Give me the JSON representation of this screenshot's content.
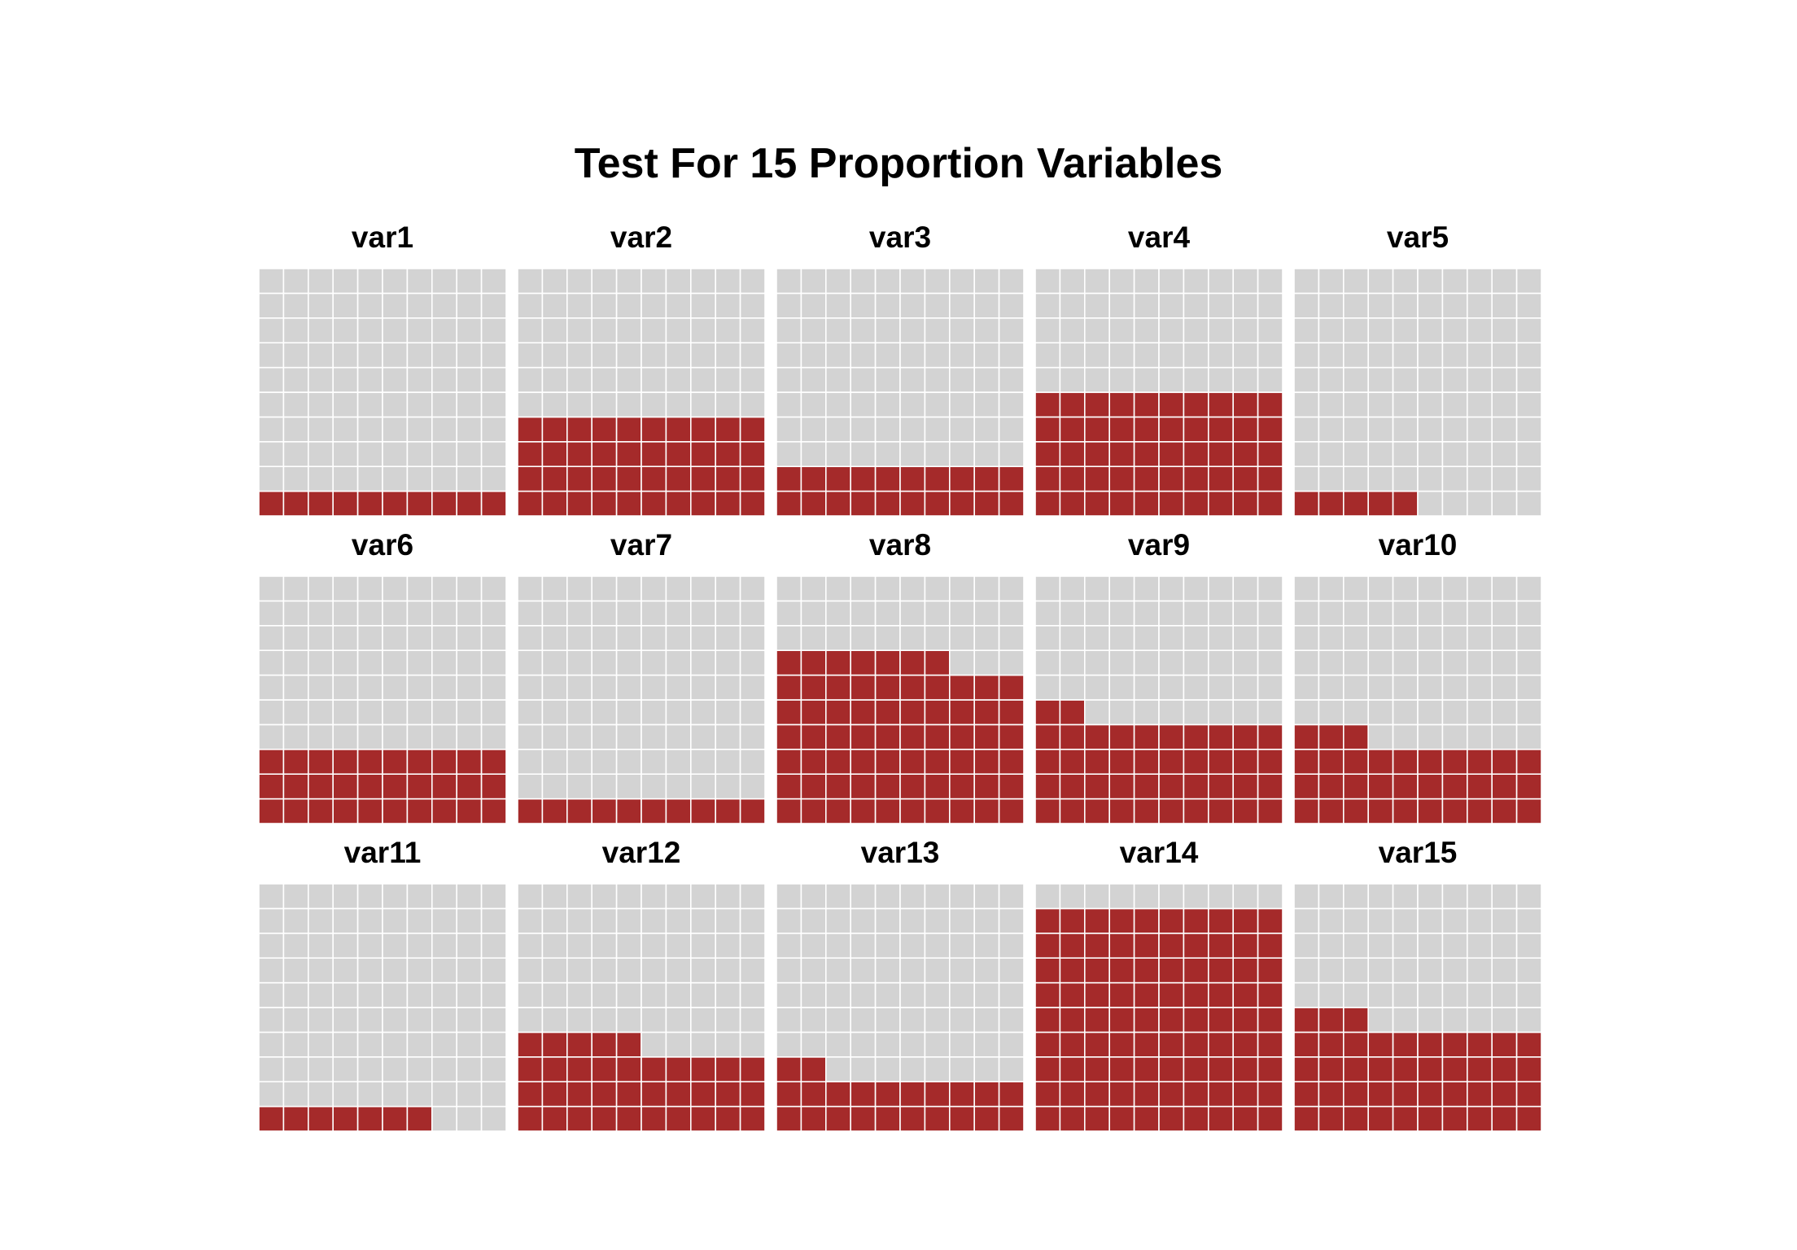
{
  "chart_data": {
    "type": "waffle",
    "title": "Test For 15 Proportion Variables",
    "grid": {
      "rows": 10,
      "cols": 10,
      "fill_order": "row-wise from bottom-left"
    },
    "colors": {
      "filled": "#A52A2A",
      "empty": "#D3D3D3",
      "cell_border": "#FFFFFF"
    },
    "layout": {
      "panel_rows": 3,
      "panel_cols": 5
    },
    "panels": [
      {
        "label": "var1",
        "value": 10
      },
      {
        "label": "var2",
        "value": 40
      },
      {
        "label": "var3",
        "value": 20
      },
      {
        "label": "var4",
        "value": 50
      },
      {
        "label": "var5",
        "value": 5
      },
      {
        "label": "var6",
        "value": 30
      },
      {
        "label": "var7",
        "value": 10
      },
      {
        "label": "var8",
        "value": 67
      },
      {
        "label": "var9",
        "value": 42
      },
      {
        "label": "var10",
        "value": 33
      },
      {
        "label": "var11",
        "value": 7
      },
      {
        "label": "var12",
        "value": 35
      },
      {
        "label": "var13",
        "value": 22
      },
      {
        "label": "var14",
        "value": 90
      },
      {
        "label": "var15",
        "value": 43
      }
    ]
  }
}
